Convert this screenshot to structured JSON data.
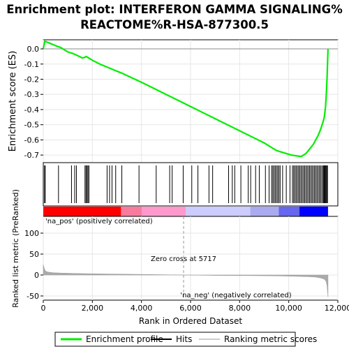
{
  "chart_data": {
    "type": "line",
    "title_lines": [
      "Enrichment plot: INTERFERON GAMMA SIGNALING%",
      "REACTOME%R-HSA-877300.5"
    ],
    "top_panel": {
      "ylabel": "Enrichment score (ES)",
      "ylim": [
        -0.75,
        0.06
      ],
      "yticks": [
        "0.0",
        "-0.1",
        "-0.2",
        "-0.3",
        "-0.4",
        "-0.5",
        "-0.6",
        "-0.7"
      ],
      "ytick_values": [
        0.0,
        -0.1,
        -0.2,
        -0.3,
        -0.4,
        -0.5,
        -0.6,
        -0.7
      ],
      "series": [
        {
          "name": "Enrichment profile",
          "color": "#00ee00",
          "x": [
            0,
            60,
            150,
            300,
            450,
            600,
            700,
            800,
            1000,
            1200,
            1400,
            1600,
            1700,
            1750,
            1800,
            1900,
            2000,
            2300,
            2600,
            2900,
            3200,
            3600,
            4000,
            4500,
            5000,
            5500,
            6000,
            6500,
            7000,
            7500,
            8000,
            8500,
            9000,
            9300,
            9500,
            9700,
            9900,
            10100,
            10300,
            10500,
            10600,
            10700,
            10800,
            10900,
            11000,
            11100,
            11200,
            11300,
            11400,
            11450,
            11500,
            11530,
            11560,
            11580,
            11600
          ],
          "y": [
            0.0,
            0.05,
            0.045,
            0.035,
            0.025,
            0.015,
            0.01,
            0.0,
            -0.02,
            -0.03,
            -0.045,
            -0.06,
            -0.055,
            -0.05,
            -0.055,
            -0.065,
            -0.075,
            -0.1,
            -0.12,
            -0.14,
            -0.16,
            -0.19,
            -0.22,
            -0.26,
            -0.3,
            -0.34,
            -0.38,
            -0.42,
            -0.46,
            -0.5,
            -0.54,
            -0.58,
            -0.62,
            -0.65,
            -0.67,
            -0.68,
            -0.69,
            -0.7,
            -0.705,
            -0.71,
            -0.7,
            -0.69,
            -0.67,
            -0.65,
            -0.63,
            -0.6,
            -0.57,
            -0.53,
            -0.48,
            -0.45,
            -0.38,
            -0.3,
            -0.2,
            -0.1,
            0.0
          ]
        }
      ]
    },
    "hits": [
      50,
      80,
      620,
      1150,
      1280,
      1350,
      1700,
      1740,
      1780,
      1820,
      1860,
      2600,
      2700,
      2800,
      2950,
      3200,
      3900,
      4600,
      5150,
      5250,
      5700,
      6050,
      6300,
      6750,
      6900,
      7550,
      7700,
      7800,
      8050,
      8350,
      8450,
      8650,
      8800,
      9050,
      9200,
      9300,
      9350,
      9400,
      9450,
      9500,
      9550,
      9600,
      9650,
      9750,
      9900,
      10050,
      10150,
      10200,
      10250,
      10300,
      10350,
      10400,
      10450,
      10500,
      10550,
      10600,
      10650,
      10700,
      10750,
      10800,
      10850,
      10900,
      10950,
      11000,
      11050,
      11100,
      11150,
      11200,
      11250,
      11300,
      11350,
      11400,
      11430,
      11460,
      11490,
      11520,
      11550,
      11580
    ],
    "middle_panel": {
      "label_pos": "'na_pos' (positively correlated)",
      "label_neg": "'na_neg' (negatively correlated)",
      "zero_cross_label": "Zero cross at 5717",
      "zero_cross": 5717
    },
    "bottom_panel": {
      "ylabel": "Ranked list metric (PreRanked)",
      "ylim": [
        -60,
        140
      ],
      "yticks": [
        "100",
        "50",
        "0",
        "-50"
      ],
      "ytick_values": [
        100,
        50,
        0,
        -50
      ],
      "metric_x": [
        0,
        20,
        50,
        100,
        200,
        400,
        800,
        1500,
        2500,
        4000,
        5717,
        7000,
        8500,
        9500,
        10200,
        10800,
        11100,
        11300,
        11450,
        11520,
        11560,
        11600
      ],
      "metric_y": [
        25,
        20,
        14,
        9,
        7,
        5.5,
        4.5,
        3.5,
        2.5,
        1.5,
        0,
        -1,
        -1.5,
        -2,
        -3,
        -4,
        -5,
        -7,
        -10,
        -15,
        -25,
        -52
      ]
    },
    "xlabel": "Rank in Ordered Dataset",
    "xlim": [
      0,
      12000
    ],
    "xticks": [
      "0",
      "2,000",
      "4,000",
      "6,000",
      "8,000",
      "10,000",
      "12,000"
    ],
    "xtick_values": [
      0,
      2000,
      4000,
      6000,
      8000,
      10000,
      12000
    ],
    "colors": {
      "es_line": "#00ee00",
      "pos": "#ff0000",
      "pos_mid": "#ff99cc",
      "neg_mid": "#ccccff",
      "neg": "#0000ff",
      "pos_label": "#cc0000",
      "neg_label": "#0000cc",
      "metric_fill": "#aaaaaa"
    },
    "legend": {
      "placement": "bottom",
      "items": [
        {
          "label": "Enrichment profile",
          "kind": "line",
          "color": "#00ee00"
        },
        {
          "label": "Hits",
          "kind": "line",
          "color": "#000000"
        },
        {
          "label": "Ranking metric scores",
          "kind": "line",
          "color": "#cccccc"
        }
      ]
    }
  }
}
